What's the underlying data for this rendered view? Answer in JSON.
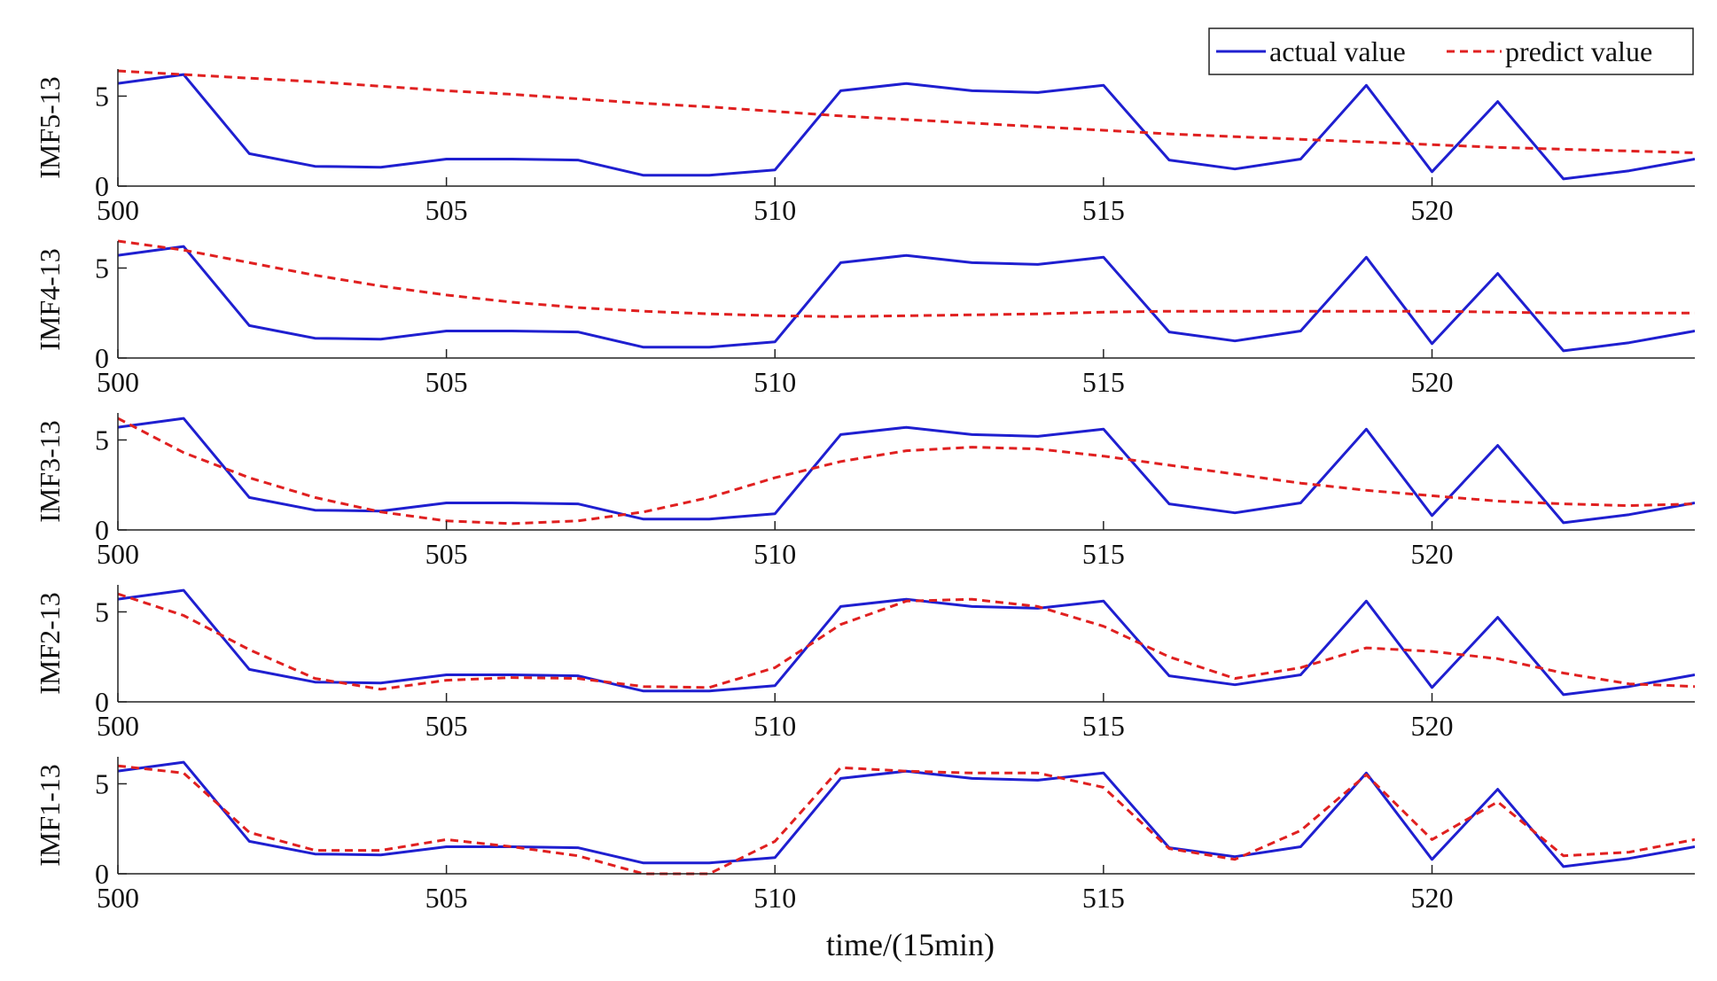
{
  "chart_data": [
    {
      "type": "line",
      "ylabel": "IMF5-13",
      "xlim": [
        500,
        524
      ],
      "ylim": [
        0,
        6.5
      ],
      "xticks": [
        500,
        505,
        510,
        515,
        520
      ],
      "yticks": [
        0,
        5
      ],
      "grid": false,
      "x": [
        500,
        501,
        502,
        503,
        504,
        505,
        506,
        507,
        508,
        509,
        510,
        511,
        512,
        513,
        514,
        515,
        516,
        517,
        518,
        519,
        520,
        521,
        522,
        523,
        524
      ],
      "series": [
        {
          "name": "actual value",
          "color": "#1f1fd0",
          "dash": "solid",
          "values": [
            5.7,
            6.2,
            1.8,
            1.1,
            1.05,
            1.5,
            1.5,
            1.45,
            0.6,
            0.6,
            0.9,
            5.3,
            5.7,
            5.3,
            5.2,
            5.6,
            1.45,
            0.95,
            1.5,
            5.6,
            0.8,
            4.7,
            0.4,
            0.85,
            1.5
          ]
        },
        {
          "name": "predict value",
          "color": "#e02020",
          "dash": "dashed",
          "values": [
            6.4,
            6.2,
            6.0,
            5.8,
            5.55,
            5.3,
            5.1,
            4.85,
            4.6,
            4.4,
            4.15,
            3.9,
            3.7,
            3.5,
            3.3,
            3.1,
            2.9,
            2.75,
            2.6,
            2.45,
            2.3,
            2.15,
            2.05,
            1.95,
            1.85
          ]
        }
      ]
    },
    {
      "type": "line",
      "ylabel": "IMF4-13",
      "xlim": [
        500,
        524
      ],
      "ylim": [
        0,
        6.5
      ],
      "xticks": [
        500,
        505,
        510,
        515,
        520
      ],
      "yticks": [
        0,
        5
      ],
      "grid": false,
      "x": [
        500,
        501,
        502,
        503,
        504,
        505,
        506,
        507,
        508,
        509,
        510,
        511,
        512,
        513,
        514,
        515,
        516,
        517,
        518,
        519,
        520,
        521,
        522,
        523,
        524
      ],
      "series": [
        {
          "name": "actual value",
          "color": "#1f1fd0",
          "dash": "solid",
          "values": [
            5.7,
            6.2,
            1.8,
            1.1,
            1.05,
            1.5,
            1.5,
            1.45,
            0.6,
            0.6,
            0.9,
            5.3,
            5.7,
            5.3,
            5.2,
            5.6,
            1.45,
            0.95,
            1.5,
            5.6,
            0.8,
            4.7,
            0.4,
            0.85,
            1.5
          ]
        },
        {
          "name": "predict value",
          "color": "#e02020",
          "dash": "dashed",
          "values": [
            6.5,
            6.0,
            5.3,
            4.6,
            4.0,
            3.5,
            3.1,
            2.8,
            2.6,
            2.45,
            2.35,
            2.3,
            2.35,
            2.4,
            2.45,
            2.55,
            2.6,
            2.6,
            2.6,
            2.6,
            2.6,
            2.55,
            2.5,
            2.5,
            2.5
          ]
        }
      ]
    },
    {
      "type": "line",
      "ylabel": "IMF3-13",
      "xlim": [
        500,
        524
      ],
      "ylim": [
        0,
        6.5
      ],
      "xticks": [
        500,
        505,
        510,
        515,
        520
      ],
      "yticks": [
        0,
        5
      ],
      "grid": false,
      "x": [
        500,
        501,
        502,
        503,
        504,
        505,
        506,
        507,
        508,
        509,
        510,
        511,
        512,
        513,
        514,
        515,
        516,
        517,
        518,
        519,
        520,
        521,
        522,
        523,
        524
      ],
      "series": [
        {
          "name": "actual value",
          "color": "#1f1fd0",
          "dash": "solid",
          "values": [
            5.7,
            6.2,
            1.8,
            1.1,
            1.05,
            1.5,
            1.5,
            1.45,
            0.6,
            0.6,
            0.9,
            5.3,
            5.7,
            5.3,
            5.2,
            5.6,
            1.45,
            0.95,
            1.5,
            5.6,
            0.8,
            4.7,
            0.4,
            0.85,
            1.5
          ]
        },
        {
          "name": "predict value",
          "color": "#e02020",
          "dash": "dashed",
          "values": [
            6.2,
            4.3,
            2.9,
            1.8,
            1.0,
            0.5,
            0.35,
            0.5,
            1.0,
            1.8,
            2.9,
            3.8,
            4.4,
            4.6,
            4.5,
            4.1,
            3.6,
            3.1,
            2.6,
            2.2,
            1.9,
            1.6,
            1.45,
            1.35,
            1.45
          ]
        }
      ]
    },
    {
      "type": "line",
      "ylabel": "IMF2-13",
      "xlim": [
        500,
        524
      ],
      "ylim": [
        0,
        6.5
      ],
      "xticks": [
        500,
        505,
        510,
        515,
        520
      ],
      "yticks": [
        0,
        5
      ],
      "grid": false,
      "x": [
        500,
        501,
        502,
        503,
        504,
        505,
        506,
        507,
        508,
        509,
        510,
        511,
        512,
        513,
        514,
        515,
        516,
        517,
        518,
        519,
        520,
        521,
        522,
        523,
        524
      ],
      "series": [
        {
          "name": "actual value",
          "color": "#1f1fd0",
          "dash": "solid",
          "values": [
            5.7,
            6.2,
            1.8,
            1.1,
            1.05,
            1.5,
            1.5,
            1.45,
            0.6,
            0.6,
            0.9,
            5.3,
            5.7,
            5.3,
            5.2,
            5.6,
            1.45,
            0.95,
            1.5,
            5.6,
            0.8,
            4.7,
            0.4,
            0.85,
            1.5
          ]
        },
        {
          "name": "predict value",
          "color": "#e02020",
          "dash": "dashed",
          "values": [
            6.0,
            4.8,
            2.9,
            1.3,
            0.7,
            1.2,
            1.35,
            1.3,
            0.85,
            0.8,
            1.9,
            4.3,
            5.6,
            5.7,
            5.3,
            4.2,
            2.5,
            1.3,
            1.9,
            3.0,
            2.8,
            2.4,
            1.6,
            1.0,
            0.85
          ]
        }
      ]
    },
    {
      "type": "line",
      "ylabel": "IMF1-13",
      "xlim": [
        500,
        524
      ],
      "ylim": [
        0,
        6.5
      ],
      "xticks": [
        500,
        505,
        510,
        515,
        520
      ],
      "yticks": [
        0,
        5
      ],
      "grid": false,
      "x": [
        500,
        501,
        502,
        503,
        504,
        505,
        506,
        507,
        508,
        509,
        510,
        511,
        512,
        513,
        514,
        515,
        516,
        517,
        518,
        519,
        520,
        521,
        522,
        523,
        524
      ],
      "series": [
        {
          "name": "actual value",
          "color": "#1f1fd0",
          "dash": "solid",
          "values": [
            5.7,
            6.2,
            1.8,
            1.1,
            1.05,
            1.5,
            1.5,
            1.45,
            0.6,
            0.6,
            0.9,
            5.3,
            5.7,
            5.3,
            5.2,
            5.6,
            1.45,
            0.95,
            1.5,
            5.6,
            0.8,
            4.7,
            0.4,
            0.85,
            1.5
          ]
        },
        {
          "name": "predict value",
          "color": "#e02020",
          "dash": "dashed",
          "values": [
            6.0,
            5.6,
            2.3,
            1.3,
            1.3,
            1.9,
            1.5,
            1.0,
            0.0,
            0.0,
            1.8,
            5.9,
            5.7,
            5.6,
            5.6,
            4.8,
            1.4,
            0.8,
            2.4,
            5.5,
            1.9,
            4.0,
            1.0,
            1.2,
            1.9
          ]
        }
      ]
    }
  ],
  "xlabel": "time/(15min)",
  "legend": {
    "placement": "top-right",
    "entries": [
      {
        "label": "actual value",
        "color": "#1f1fd0",
        "dash": "solid"
      },
      {
        "label": "predict value",
        "color": "#e02020",
        "dash": "dashed"
      }
    ]
  }
}
